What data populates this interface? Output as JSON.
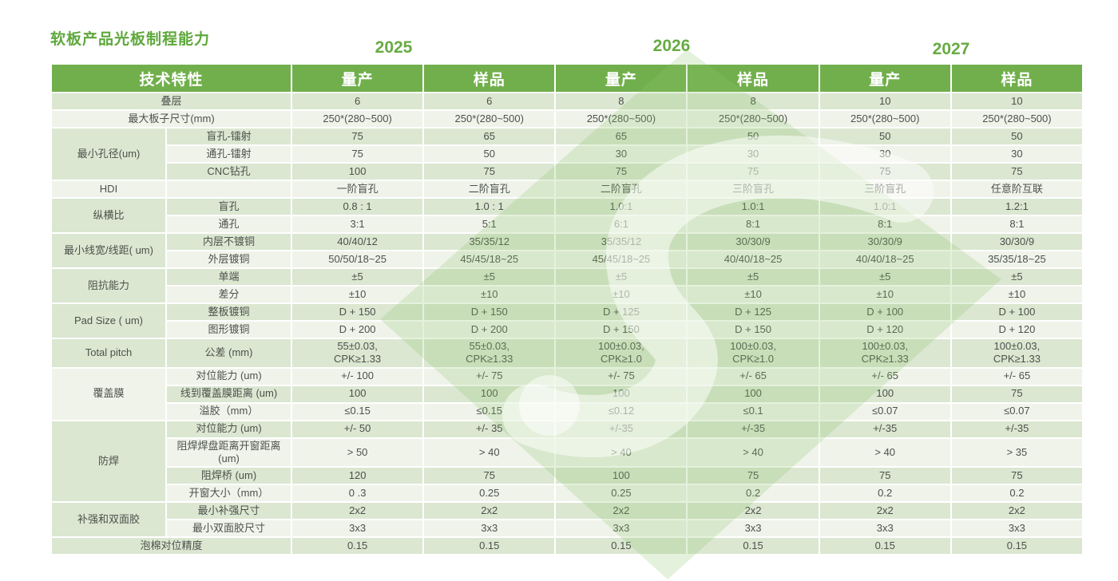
{
  "page": {
    "title": "软板产品光板制程能力"
  },
  "colors": {
    "header_green": "#71AF4C",
    "title_green": "#5FA83C",
    "year_green": "#67AB42",
    "stripe_green": "#DBE7D1",
    "stripe_light": "#F0F3EA",
    "watermark_green": "#8FC36C",
    "cell_text": "#4B514B"
  },
  "years": [
    "2025",
    "2026",
    "2027"
  ],
  "header": {
    "feature_label": "技术特性",
    "mass_label": "量产",
    "sample_label": "样品"
  },
  "watermark": "diamond-s-logo",
  "table": {
    "sections": [
      {
        "label": "叠层",
        "merge": true,
        "rows": [
          {
            "values": [
              "6",
              "6",
              "8",
              "8",
              "10",
              "10"
            ]
          }
        ]
      },
      {
        "label": "最大板子尺寸(mm)",
        "merge": true,
        "rows": [
          {
            "values": [
              "250*(280~500)",
              "250*(280~500)",
              "250*(280~500)",
              "250*(280~500)",
              "250*(280~500)",
              "250*(280~500)"
            ]
          }
        ]
      },
      {
        "label": "最小孔径(um)",
        "rows": [
          {
            "sub": "盲孔-镭射",
            "values": [
              "75",
              "65",
              "65",
              "50",
              "50",
              "50"
            ]
          },
          {
            "sub": "通孔-镭射",
            "values": [
              "75",
              "50",
              "30",
              "30",
              "30",
              "30"
            ]
          },
          {
            "sub": "CNC钻孔",
            "values": [
              "100",
              "75",
              "75",
              "75",
              "75",
              "75"
            ]
          }
        ]
      },
      {
        "label": "HDI",
        "rows": [
          {
            "sub": "",
            "values": [
              "一阶盲孔",
              "二阶盲孔",
              "二阶盲孔",
              "三阶盲孔",
              "三阶盲孔",
              "任意阶互联"
            ]
          }
        ]
      },
      {
        "label": "纵横比",
        "rows": [
          {
            "sub": "盲孔",
            "values": [
              "0.8 : 1",
              "1.0 : 1",
              "1.0:1",
              "1.0:1",
              "1.0:1",
              "1.2:1"
            ]
          },
          {
            "sub": "通孔",
            "values": [
              "3:1",
              "5:1",
              "6:1",
              "8:1",
              "8:1",
              "8:1"
            ]
          }
        ]
      },
      {
        "label": "最小线宽/线距( um)",
        "rows": [
          {
            "sub": "内层不镀铜",
            "values": [
              "40/40/12",
              "35/35/12",
              "35/35/12",
              "30/30/9",
              "30/30/9",
              "30/30/9"
            ]
          },
          {
            "sub": "外层镀铜",
            "values": [
              "50/50/18~25",
              "45/45/18~25",
              "45/45/18~25",
              "40/40/18~25",
              "40/40/18~25",
              "35/35/18~25"
            ]
          }
        ]
      },
      {
        "label": "阻抗能力",
        "rows": [
          {
            "sub": "单端",
            "values": [
              "±5",
              "±5",
              "±5",
              "±5",
              "±5",
              "±5"
            ]
          },
          {
            "sub": "差分",
            "values": [
              "±10",
              "±10",
              "±10",
              "±10",
              "±10",
              "±10"
            ]
          }
        ]
      },
      {
        "label": "Pad Size ( um)",
        "rows": [
          {
            "sub": "整板镀铜",
            "values": [
              "D + 150",
              "D + 150",
              "D + 125",
              "D + 125",
              "D + 100",
              "D + 100"
            ]
          },
          {
            "sub": "图形镀铜",
            "values": [
              "D + 200",
              "D + 200",
              "D + 150",
              "D + 150",
              "D + 120",
              "D + 120"
            ]
          }
        ]
      },
      {
        "label": "Total pitch",
        "rows": [
          {
            "sub": "公差 (mm)",
            "values": [
              "55±0.03,\nCPK≥1.33",
              "55±0.03,\nCPK≥1.33",
              "100±0.03,\nCPK≥1.0",
              "100±0.03,\nCPK≥1.0",
              "100±0.03,\nCPK≥1.33",
              "100±0.03,\nCPK≥1.33"
            ]
          }
        ]
      },
      {
        "label": "覆盖膜",
        "rows": [
          {
            "sub": "对位能力 (um)",
            "values": [
              "+/- 100",
              "+/- 75",
              "+/- 75",
              "+/- 65",
              "+/- 65",
              "+/- 65"
            ]
          },
          {
            "sub": "线到覆盖膜距离 (um)",
            "values": [
              "100",
              "100",
              "100",
              "100",
              "100",
              "75"
            ]
          },
          {
            "sub": "溢胶（mm）",
            "values": [
              "≤0.15",
              "≤0.15",
              "≤0.12",
              "≤0.1",
              "≤0.07",
              "≤0.07"
            ]
          }
        ]
      },
      {
        "label": "防焊",
        "rows": [
          {
            "sub": "对位能力 (um)",
            "values": [
              "+/- 50",
              "+/- 35",
              "+/-35",
              "+/-35",
              "+/-35",
              "+/-35"
            ]
          },
          {
            "sub": "阻焊焊盘距离开窗距离 (um)",
            "values": [
              "> 50",
              "> 40",
              "> 40",
              "> 40",
              "> 40",
              "> 35"
            ]
          },
          {
            "sub": "阻焊桥 (um)",
            "values": [
              "120",
              "75",
              "100",
              "75",
              "75",
              "75"
            ]
          },
          {
            "sub": "开窗大小（mm）",
            "values": [
              "0 .3",
              "0.25",
              "0.25",
              "0.2",
              "0.2",
              "0.2"
            ]
          }
        ]
      },
      {
        "label": "补强和双面胶",
        "rows": [
          {
            "sub": "最小补强尺寸",
            "values": [
              "2x2",
              "2x2",
              "2x2",
              "2x2",
              "2x2",
              "2x2"
            ]
          },
          {
            "sub": "最小双面胶尺寸",
            "values": [
              "3x3",
              "3x3",
              "3x3",
              "3x3",
              "3x3",
              "3x3"
            ]
          }
        ]
      },
      {
        "label": "泡棉对位精度",
        "merge": true,
        "rows": [
          {
            "values": [
              "0.15",
              "0.15",
              "0.15",
              "0.15",
              "0.15",
              "0.15"
            ]
          }
        ]
      }
    ]
  }
}
